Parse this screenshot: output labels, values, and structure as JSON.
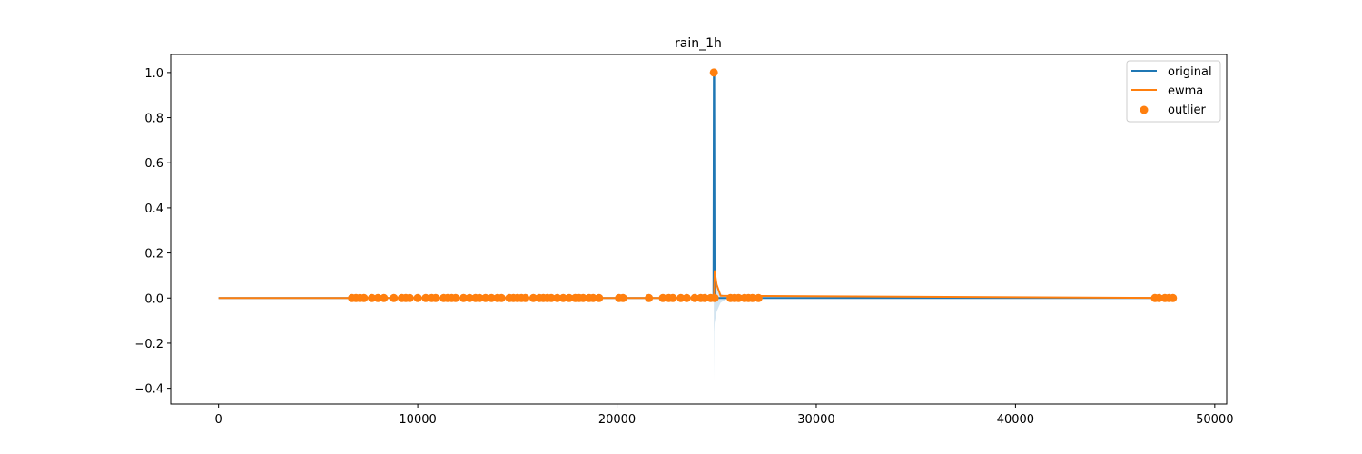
{
  "chart_data": {
    "type": "line",
    "title": "rain_1h",
    "xlabel": "",
    "ylabel": "",
    "xlim": [
      -2400,
      50600
    ],
    "ylim": [
      -0.47,
      1.08
    ],
    "xticks": [
      0,
      10000,
      20000,
      30000,
      40000,
      50000
    ],
    "xtick_labels": [
      "0",
      "10000",
      "20000",
      "30000",
      "40000",
      "50000"
    ],
    "yticks": [
      -0.4,
      -0.2,
      0.0,
      0.2,
      0.4,
      0.6,
      0.8,
      1.0
    ],
    "ytick_labels": [
      "−0.4",
      "−0.2",
      "0.0",
      "0.2",
      "0.4",
      "0.6",
      "0.8",
      "1.0"
    ],
    "grid": false,
    "legend_position": "top-right",
    "series": [
      {
        "name": "original",
        "kind": "line",
        "color": "#1f77b4",
        "x": [
          0,
          24840,
          24860,
          24880,
          24900,
          48000
        ],
        "y": [
          0,
          0,
          1.0,
          1.0,
          0,
          0
        ]
      },
      {
        "name": "ewma",
        "kind": "line",
        "color": "#ff7f0e",
        "x": [
          0,
          24860,
          24900,
          25000,
          25200,
          48000
        ],
        "y": [
          0,
          0,
          0.12,
          0.06,
          0.01,
          0
        ]
      },
      {
        "name": "outlier",
        "kind": "scatter",
        "color": "#ff7f0e",
        "x": [
          6700,
          6900,
          7100,
          7300,
          7700,
          8000,
          8300,
          8800,
          9200,
          9400,
          9600,
          10000,
          10400,
          10700,
          10900,
          11300,
          11500,
          11700,
          11900,
          12300,
          12600,
          12900,
          13100,
          13400,
          13700,
          14000,
          14200,
          14600,
          14800,
          15000,
          15200,
          15400,
          15800,
          16100,
          16300,
          16500,
          16700,
          17000,
          17300,
          17600,
          17900,
          18100,
          18300,
          18600,
          18800,
          19100,
          20100,
          20300,
          21600,
          22300,
          22600,
          22800,
          23200,
          23500,
          23900,
          24200,
          24400,
          24700,
          24900,
          25700,
          25900,
          26100,
          26400,
          26600,
          26800,
          27100,
          47000,
          47200,
          47500,
          47700,
          47900,
          24860
        ],
        "y": [
          0,
          0,
          0,
          0,
          0,
          0,
          0,
          0,
          0,
          0,
          0,
          0,
          0,
          0,
          0,
          0,
          0,
          0,
          0,
          0,
          0,
          0,
          0,
          0,
          0,
          0,
          0,
          0,
          0,
          0,
          0,
          0,
          0,
          0,
          0,
          0,
          0,
          0,
          0,
          0,
          0,
          0,
          0,
          0,
          0,
          0,
          0,
          0,
          0,
          0,
          0,
          0,
          0,
          0,
          0,
          0,
          0,
          0,
          0,
          0,
          0,
          0,
          0,
          0,
          0,
          0,
          0,
          0,
          0,
          0,
          0,
          1.0
        ]
      }
    ],
    "band": {
      "color": "#1f77b4",
      "opacity": 0.2,
      "x": [
        24860,
        24880,
        24900,
        25000,
        25200,
        25600
      ],
      "upper": [
        0.35,
        0.15,
        0.11,
        0.06,
        0.02,
        0.0
      ],
      "lower": [
        -0.37,
        -0.15,
        -0.11,
        -0.06,
        -0.02,
        0.0
      ]
    }
  }
}
